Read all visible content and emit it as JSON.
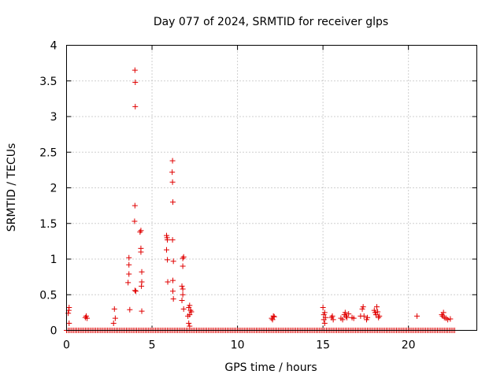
{
  "chart_data": {
    "type": "scatter",
    "title": "Day 077 of 2024, SRMTID for receiver glps",
    "xlabel": "GPS time / hours",
    "ylabel": "SRMTID / TECUs",
    "xlim": [
      0,
      24
    ],
    "ylim": [
      0,
      4
    ],
    "xticks": [
      0,
      5,
      10,
      15,
      20
    ],
    "xtick_labels": [
      "0",
      "5",
      "10",
      "15",
      "20"
    ],
    "yticks": [
      0,
      0.5,
      1,
      1.5,
      2,
      2.5,
      3,
      3.5,
      4
    ],
    "ytick_labels": [
      "0",
      "0.5",
      "1",
      "1.5",
      "2",
      "2.5",
      "3",
      "3.5",
      "4"
    ],
    "grid": true,
    "marker": "+",
    "color": "#e00000",
    "baseline": {
      "y": 0,
      "x_start": 0,
      "x_end": 22.7,
      "step": 0.1
    },
    "series": [
      {
        "name": "SRMTID",
        "points": [
          [
            0.1,
            0.24
          ],
          [
            0.13,
            0.28
          ],
          [
            0.15,
            0.32
          ],
          [
            0.15,
            0.1
          ],
          [
            1.1,
            0.18
          ],
          [
            1.15,
            0.2
          ],
          [
            1.2,
            0.17
          ],
          [
            2.75,
            0.1
          ],
          [
            2.8,
            0.3
          ],
          [
            2.85,
            0.17
          ],
          [
            3.6,
            0.67
          ],
          [
            3.65,
            1.02
          ],
          [
            3.65,
            0.92
          ],
          [
            3.65,
            0.79
          ],
          [
            3.7,
            0.29
          ],
          [
            4.0,
            3.65
          ],
          [
            4.02,
            3.48
          ],
          [
            4.02,
            3.14
          ],
          [
            4.0,
            1.75
          ],
          [
            3.98,
            1.53
          ],
          [
            4.0,
            0.56
          ],
          [
            4.05,
            0.55
          ],
          [
            4.3,
            1.38
          ],
          [
            4.35,
            1.4
          ],
          [
            4.35,
            1.15
          ],
          [
            4.35,
            1.1
          ],
          [
            4.4,
            0.82
          ],
          [
            4.4,
            0.68
          ],
          [
            4.38,
            0.62
          ],
          [
            4.4,
            0.27
          ],
          [
            5.85,
            1.33
          ],
          [
            5.88,
            1.3
          ],
          [
            5.9,
            1.27
          ],
          [
            5.85,
            1.13
          ],
          [
            5.9,
            0.99
          ],
          [
            5.92,
            0.68
          ],
          [
            6.2,
            2.38
          ],
          [
            6.18,
            2.22
          ],
          [
            6.2,
            2.08
          ],
          [
            6.22,
            1.8
          ],
          [
            6.2,
            1.27
          ],
          [
            6.25,
            0.97
          ],
          [
            6.22,
            0.7
          ],
          [
            6.22,
            0.55
          ],
          [
            6.25,
            0.44
          ],
          [
            6.8,
            1.01
          ],
          [
            6.85,
            1.03
          ],
          [
            6.8,
            0.9
          ],
          [
            6.75,
            0.62
          ],
          [
            6.8,
            0.58
          ],
          [
            6.8,
            0.5
          ],
          [
            6.75,
            0.42
          ],
          [
            6.85,
            0.3
          ],
          [
            7.15,
            0.32
          ],
          [
            7.2,
            0.35
          ],
          [
            7.25,
            0.28
          ],
          [
            7.3,
            0.26
          ],
          [
            7.2,
            0.22
          ],
          [
            7.15,
            0.1
          ],
          [
            7.2,
            0.06
          ],
          [
            7.1,
            0.2
          ],
          [
            12.0,
            0.17
          ],
          [
            12.1,
            0.2
          ],
          [
            12.15,
            0.19
          ],
          [
            12.05,
            0.15
          ],
          [
            15.0,
            0.32
          ],
          [
            15.05,
            0.22
          ],
          [
            15.1,
            0.25
          ],
          [
            15.15,
            0.18
          ],
          [
            15.05,
            0.15
          ],
          [
            15.1,
            0.1
          ],
          [
            15.5,
            0.18
          ],
          [
            15.55,
            0.2
          ],
          [
            15.6,
            0.15
          ],
          [
            16.05,
            0.17
          ],
          [
            16.15,
            0.15
          ],
          [
            16.25,
            0.22
          ],
          [
            16.3,
            0.25
          ],
          [
            16.35,
            0.2
          ],
          [
            16.4,
            0.18
          ],
          [
            16.5,
            0.23
          ],
          [
            16.7,
            0.18
          ],
          [
            16.8,
            0.17
          ],
          [
            17.2,
            0.2
          ],
          [
            17.3,
            0.3
          ],
          [
            17.35,
            0.33
          ],
          [
            17.4,
            0.2
          ],
          [
            17.55,
            0.15
          ],
          [
            17.6,
            0.18
          ],
          [
            18.0,
            0.28
          ],
          [
            18.05,
            0.25
          ],
          [
            18.1,
            0.22
          ],
          [
            18.15,
            0.33
          ],
          [
            18.2,
            0.26
          ],
          [
            18.3,
            0.2
          ],
          [
            18.25,
            0.18
          ],
          [
            20.5,
            0.2
          ],
          [
            21.95,
            0.22
          ],
          [
            22.0,
            0.2
          ],
          [
            22.05,
            0.25
          ],
          [
            22.1,
            0.18
          ],
          [
            22.2,
            0.17
          ],
          [
            22.3,
            0.15
          ],
          [
            22.45,
            0.16
          ]
        ]
      }
    ]
  }
}
